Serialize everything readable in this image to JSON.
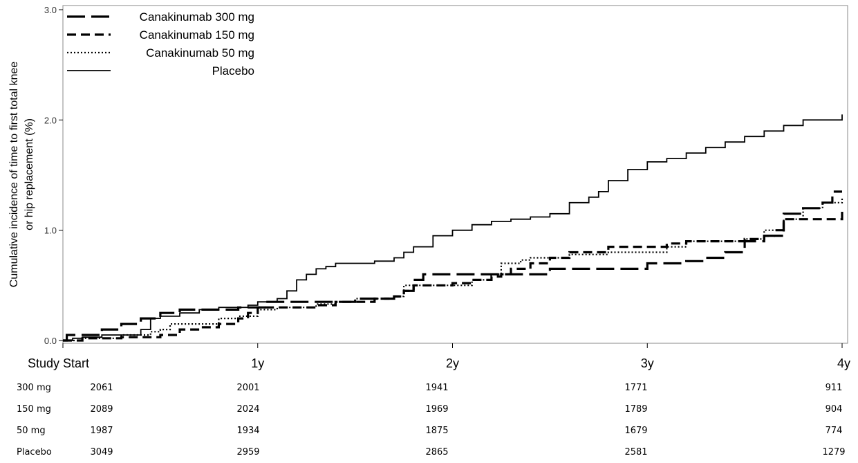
{
  "chart_data": {
    "type": "line",
    "ylabel_lines": [
      "Cumulative incidence of time to first total knee",
      "or hip replacement (%)"
    ],
    "xlabel": "",
    "xlim": [
      0,
      4
    ],
    "ylim": [
      0,
      3
    ],
    "x_ticks": [
      {
        "value": 0,
        "label": "Study Start"
      },
      {
        "value": 1,
        "label": "1y"
      },
      {
        "value": 2,
        "label": "2y"
      },
      {
        "value": 3,
        "label": "3y"
      },
      {
        "value": 4,
        "label": "4y"
      }
    ],
    "y_ticks": [
      {
        "value": 0,
        "label": "0.0"
      },
      {
        "value": 1,
        "label": "1.0"
      },
      {
        "value": 2,
        "label": "2.0"
      },
      {
        "value": 3,
        "label": "3.0"
      }
    ],
    "grid": false,
    "legend_position": "top-left",
    "series": [
      {
        "name": "Canakinumab 300 mg",
        "style": "long-dash",
        "color": "#000000",
        "points": [
          [
            0,
            0
          ],
          [
            0.02,
            0.05
          ],
          [
            0.08,
            0.05
          ],
          [
            0.1,
            0.05
          ],
          [
            0.2,
            0.1
          ],
          [
            0.3,
            0.15
          ],
          [
            0.4,
            0.2
          ],
          [
            0.5,
            0.25
          ],
          [
            0.6,
            0.28
          ],
          [
            0.7,
            0.28
          ],
          [
            0.9,
            0.3
          ],
          [
            1.0,
            0.3
          ],
          [
            1.05,
            0.35
          ],
          [
            1.2,
            0.35
          ],
          [
            1.3,
            0.35
          ],
          [
            1.5,
            0.38
          ],
          [
            1.7,
            0.4
          ],
          [
            1.75,
            0.45
          ],
          [
            1.8,
            0.55
          ],
          [
            1.85,
            0.6
          ],
          [
            2.0,
            0.6
          ],
          [
            2.1,
            0.6
          ],
          [
            2.2,
            0.6
          ],
          [
            2.3,
            0.6
          ],
          [
            2.4,
            0.6
          ],
          [
            2.5,
            0.65
          ],
          [
            2.6,
            0.65
          ],
          [
            2.8,
            0.65
          ],
          [
            3.0,
            0.7
          ],
          [
            3.1,
            0.7
          ],
          [
            3.2,
            0.72
          ],
          [
            3.3,
            0.75
          ],
          [
            3.4,
            0.8
          ],
          [
            3.5,
            0.9
          ],
          [
            3.6,
            0.95
          ],
          [
            3.65,
            1.0
          ],
          [
            3.7,
            1.15
          ],
          [
            3.8,
            1.2
          ],
          [
            3.9,
            1.25
          ],
          [
            3.95,
            1.35
          ],
          [
            4.0,
            1.35
          ]
        ]
      },
      {
        "name": "Canakinumab 150 mg",
        "style": "dash",
        "color": "#000000",
        "points": [
          [
            0,
            0
          ],
          [
            0.1,
            0.02
          ],
          [
            0.3,
            0.03
          ],
          [
            0.5,
            0.05
          ],
          [
            0.55,
            0.05
          ],
          [
            0.6,
            0.1
          ],
          [
            0.7,
            0.12
          ],
          [
            0.8,
            0.15
          ],
          [
            0.9,
            0.2
          ],
          [
            0.95,
            0.25
          ],
          [
            1.0,
            0.3
          ],
          [
            1.1,
            0.3
          ],
          [
            1.2,
            0.3
          ],
          [
            1.3,
            0.32
          ],
          [
            1.4,
            0.35
          ],
          [
            1.5,
            0.35
          ],
          [
            1.6,
            0.38
          ],
          [
            1.7,
            0.4
          ],
          [
            1.75,
            0.45
          ],
          [
            1.8,
            0.5
          ],
          [
            1.9,
            0.5
          ],
          [
            2.0,
            0.52
          ],
          [
            2.1,
            0.55
          ],
          [
            2.2,
            0.58
          ],
          [
            2.25,
            0.6
          ],
          [
            2.3,
            0.65
          ],
          [
            2.4,
            0.7
          ],
          [
            2.5,
            0.75
          ],
          [
            2.6,
            0.8
          ],
          [
            2.8,
            0.85
          ],
          [
            3.0,
            0.85
          ],
          [
            3.1,
            0.88
          ],
          [
            3.2,
            0.9
          ],
          [
            3.4,
            0.9
          ],
          [
            3.5,
            0.92
          ],
          [
            3.6,
            0.95
          ],
          [
            3.7,
            1.1
          ],
          [
            3.8,
            1.1
          ],
          [
            3.9,
            1.1
          ],
          [
            4.0,
            1.2
          ]
        ]
      },
      {
        "name": "Canakinumab 50 mg",
        "style": "dot",
        "color": "#000000",
        "points": [
          [
            0,
            0
          ],
          [
            0.1,
            0.02
          ],
          [
            0.3,
            0.05
          ],
          [
            0.45,
            0.08
          ],
          [
            0.5,
            0.1
          ],
          [
            0.55,
            0.15
          ],
          [
            0.7,
            0.15
          ],
          [
            0.8,
            0.2
          ],
          [
            0.9,
            0.22
          ],
          [
            1.0,
            0.28
          ],
          [
            1.1,
            0.3
          ],
          [
            1.2,
            0.3
          ],
          [
            1.3,
            0.33
          ],
          [
            1.4,
            0.35
          ],
          [
            1.5,
            0.38
          ],
          [
            1.6,
            0.38
          ],
          [
            1.7,
            0.4
          ],
          [
            1.75,
            0.5
          ],
          [
            1.9,
            0.5
          ],
          [
            2.0,
            0.5
          ],
          [
            2.1,
            0.55
          ],
          [
            2.2,
            0.6
          ],
          [
            2.25,
            0.7
          ],
          [
            2.35,
            0.73
          ],
          [
            2.4,
            0.75
          ],
          [
            2.5,
            0.75
          ],
          [
            2.6,
            0.78
          ],
          [
            2.7,
            0.78
          ],
          [
            2.8,
            0.8
          ],
          [
            3.0,
            0.8
          ],
          [
            3.1,
            0.85
          ],
          [
            3.2,
            0.9
          ],
          [
            3.4,
            0.9
          ],
          [
            3.5,
            0.92
          ],
          [
            3.6,
            1.0
          ],
          [
            3.7,
            1.1
          ],
          [
            3.8,
            1.2
          ],
          [
            3.9,
            1.25
          ],
          [
            4.0,
            1.3
          ]
        ]
      },
      {
        "name": "Placebo",
        "style": "solid",
        "color": "#000000",
        "points": [
          [
            0,
            0
          ],
          [
            0.05,
            0.02
          ],
          [
            0.1,
            0.03
          ],
          [
            0.2,
            0.05
          ],
          [
            0.3,
            0.05
          ],
          [
            0.4,
            0.1
          ],
          [
            0.45,
            0.2
          ],
          [
            0.5,
            0.22
          ],
          [
            0.6,
            0.25
          ],
          [
            0.7,
            0.28
          ],
          [
            0.8,
            0.3
          ],
          [
            0.9,
            0.3
          ],
          [
            0.95,
            0.32
          ],
          [
            1.0,
            0.35
          ],
          [
            1.1,
            0.38
          ],
          [
            1.15,
            0.45
          ],
          [
            1.2,
            0.55
          ],
          [
            1.25,
            0.6
          ],
          [
            1.3,
            0.65
          ],
          [
            1.35,
            0.67
          ],
          [
            1.4,
            0.7
          ],
          [
            1.5,
            0.7
          ],
          [
            1.6,
            0.72
          ],
          [
            1.7,
            0.75
          ],
          [
            1.75,
            0.8
          ],
          [
            1.8,
            0.85
          ],
          [
            1.9,
            0.95
          ],
          [
            2.0,
            1.0
          ],
          [
            2.1,
            1.05
          ],
          [
            2.2,
            1.08
          ],
          [
            2.3,
            1.1
          ],
          [
            2.4,
            1.12
          ],
          [
            2.5,
            1.15
          ],
          [
            2.6,
            1.25
          ],
          [
            2.7,
            1.3
          ],
          [
            2.75,
            1.35
          ],
          [
            2.8,
            1.45
          ],
          [
            2.9,
            1.55
          ],
          [
            3.0,
            1.62
          ],
          [
            3.1,
            1.65
          ],
          [
            3.2,
            1.7
          ],
          [
            3.3,
            1.75
          ],
          [
            3.4,
            1.8
          ],
          [
            3.5,
            1.85
          ],
          [
            3.6,
            1.9
          ],
          [
            3.7,
            1.95
          ],
          [
            3.8,
            2.0
          ],
          [
            3.9,
            2.0
          ],
          [
            4.0,
            2.05
          ]
        ]
      }
    ]
  },
  "risk_table": {
    "rows": [
      {
        "label": "300 mg",
        "values": [
          "2061",
          "2001",
          "1941",
          "1771",
          "911"
        ]
      },
      {
        "label": "150 mg",
        "values": [
          "2089",
          "2024",
          "1969",
          "1789",
          "904"
        ]
      },
      {
        "label": "50 mg",
        "values": [
          "1987",
          "1934",
          "1875",
          "1679",
          "774"
        ]
      },
      {
        "label": "Placebo",
        "values": [
          "3049",
          "2959",
          "2865",
          "2581",
          "1279"
        ]
      }
    ]
  }
}
